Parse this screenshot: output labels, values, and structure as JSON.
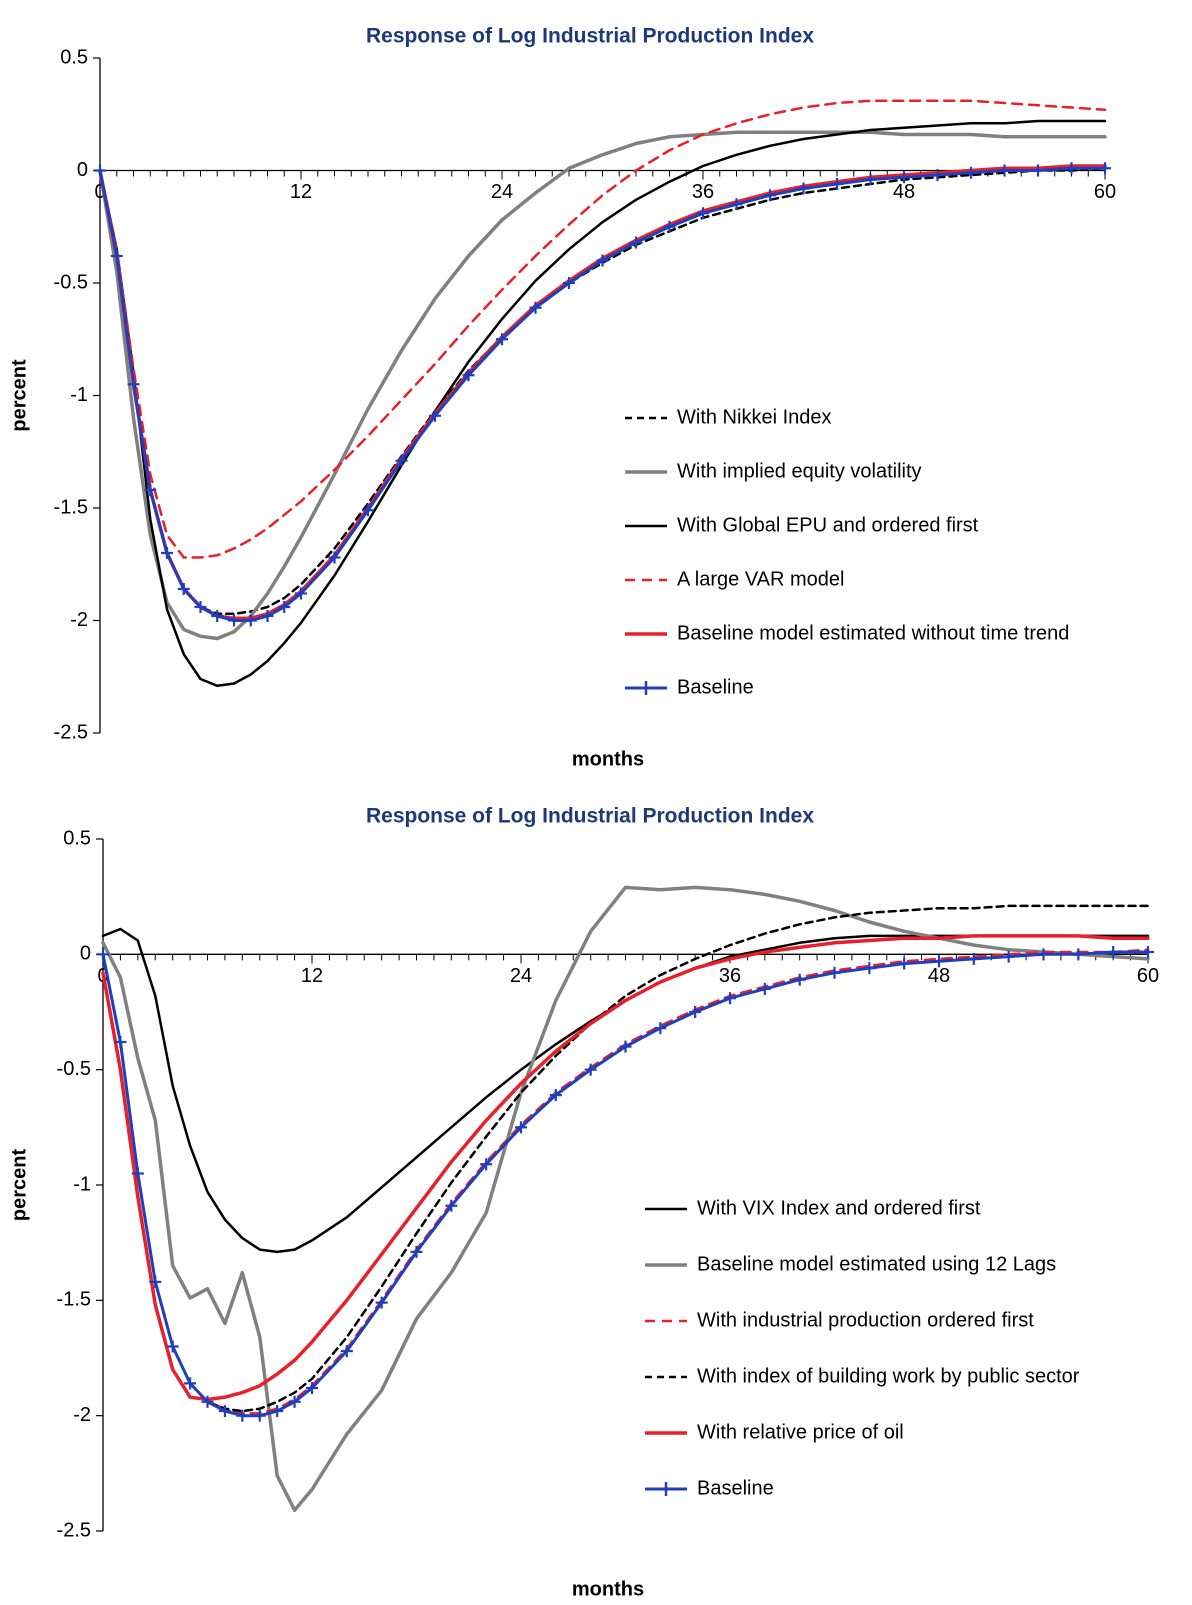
{
  "chart_data": [
    {
      "type": "line",
      "title": "Response of Log Industrial Production Index",
      "xlabel": "months",
      "ylabel": "percent",
      "xlim": [
        0,
        60
      ],
      "ylim": [
        -2.5,
        0.5
      ],
      "x_ticks": [
        "0",
        "12",
        "24",
        "36",
        "48",
        "60"
      ],
      "y_ticks": [
        "0.5",
        "0",
        "-0.5",
        "-1",
        "-1.5",
        "-2",
        "-2.5"
      ],
      "legend_position": "lower-right",
      "x_key": [
        0,
        1,
        2,
        3,
        4,
        5,
        6,
        7,
        8,
        9,
        10,
        11,
        12,
        14,
        16,
        18,
        20,
        22,
        24,
        26,
        28,
        30,
        32,
        34,
        36,
        38,
        40,
        42,
        44,
        46,
        48,
        50,
        52,
        54,
        56,
        58,
        60
      ],
      "series": [
        {
          "name": "With Nikkei Index",
          "style": "dashed",
          "color": "#000000",
          "values": [
            0,
            -0.38,
            -0.95,
            -1.42,
            -1.7,
            -1.86,
            -1.94,
            -1.97,
            -1.97,
            -1.96,
            -1.94,
            -1.9,
            -1.84,
            -1.68,
            -1.48,
            -1.27,
            -1.07,
            -0.89,
            -0.74,
            -0.61,
            -0.5,
            -0.41,
            -0.33,
            -0.27,
            -0.21,
            -0.17,
            -0.13,
            -0.1,
            -0.08,
            -0.06,
            -0.04,
            -0.03,
            -0.02,
            -0.01,
            0,
            0,
            0.01
          ]
        },
        {
          "name": "With implied equity volatility",
          "style": "solid",
          "color": "#808080",
          "values": [
            0,
            -0.45,
            -1.1,
            -1.62,
            -1.92,
            -2.04,
            -2.07,
            -2.08,
            -2.05,
            -1.98,
            -1.88,
            -1.76,
            -1.63,
            -1.35,
            -1.06,
            -0.8,
            -0.57,
            -0.38,
            -0.22,
            -0.1,
            0.01,
            0.07,
            0.12,
            0.15,
            0.16,
            0.17,
            0.17,
            0.17,
            0.17,
            0.17,
            0.16,
            0.16,
            0.16,
            0.15,
            0.15,
            0.15,
            0.15
          ]
        },
        {
          "name": "With Global EPU and ordered first",
          "style": "solid",
          "color": "#000000",
          "values": [
            0,
            -0.35,
            -0.9,
            -1.55,
            -1.95,
            -2.15,
            -2.26,
            -2.29,
            -2.28,
            -2.24,
            -2.18,
            -2.1,
            -2.01,
            -1.8,
            -1.56,
            -1.31,
            -1.07,
            -0.85,
            -0.66,
            -0.49,
            -0.35,
            -0.23,
            -0.13,
            -0.05,
            0.02,
            0.07,
            0.11,
            0.14,
            0.16,
            0.18,
            0.19,
            0.2,
            0.21,
            0.21,
            0.22,
            0.22,
            0.22
          ]
        },
        {
          "name": "A large VAR model",
          "style": "dashed",
          "color": "#e8202a",
          "values": [
            0,
            -0.35,
            -0.88,
            -1.35,
            -1.62,
            -1.72,
            -1.72,
            -1.71,
            -1.68,
            -1.64,
            -1.59,
            -1.53,
            -1.47,
            -1.33,
            -1.18,
            -1.02,
            -0.86,
            -0.69,
            -0.53,
            -0.38,
            -0.24,
            -0.11,
            0,
            0.09,
            0.16,
            0.21,
            0.25,
            0.28,
            0.3,
            0.31,
            0.31,
            0.31,
            0.31,
            0.3,
            0.29,
            0.28,
            0.27
          ]
        },
        {
          "name": "Baseline model estimated without time trend",
          "style": "solid",
          "color": "#e8202a",
          "values": [
            0,
            -0.38,
            -0.95,
            -1.42,
            -1.7,
            -1.86,
            -1.94,
            -1.98,
            -1.99,
            -1.99,
            -1.97,
            -1.93,
            -1.87,
            -1.71,
            -1.5,
            -1.28,
            -1.08,
            -0.9,
            -0.74,
            -0.6,
            -0.49,
            -0.39,
            -0.31,
            -0.24,
            -0.18,
            -0.14,
            -0.1,
            -0.07,
            -0.05,
            -0.03,
            -0.02,
            -0.01,
            0,
            0.01,
            0.01,
            0.02,
            0.02
          ]
        },
        {
          "name": "Baseline",
          "style": "solid-marker",
          "color": "#1f3fbf",
          "values": [
            0,
            -0.38,
            -0.95,
            -1.42,
            -1.7,
            -1.86,
            -1.94,
            -1.98,
            -2,
            -2,
            -1.98,
            -1.94,
            -1.88,
            -1.72,
            -1.51,
            -1.29,
            -1.09,
            -0.91,
            -0.75,
            -0.61,
            -0.5,
            -0.4,
            -0.32,
            -0.25,
            -0.19,
            -0.15,
            -0.11,
            -0.08,
            -0.06,
            -0.04,
            -0.03,
            -0.02,
            -0.01,
            0,
            0,
            0.01,
            0.01
          ]
        }
      ]
    },
    {
      "type": "line",
      "title": "Response of Log Industrial Production Index",
      "xlabel": "months",
      "ylabel": "percent",
      "xlim": [
        0,
        60
      ],
      "ylim": [
        -2.5,
        0.5
      ],
      "x_ticks": [
        "0",
        "12",
        "24",
        "36",
        "48",
        "60"
      ],
      "y_ticks": [
        "0.5",
        "0",
        "-0.5",
        "-1",
        "-1.5",
        "-2",
        "-2.5"
      ],
      "legend_position": "lower-right",
      "x_key": [
        0,
        1,
        2,
        3,
        4,
        5,
        6,
        7,
        8,
        9,
        10,
        11,
        12,
        14,
        16,
        18,
        20,
        22,
        24,
        26,
        28,
        30,
        32,
        34,
        36,
        38,
        40,
        42,
        44,
        46,
        48,
        50,
        52,
        54,
        56,
        58,
        60
      ],
      "series": [
        {
          "name": "With VIX Index and ordered first",
          "style": "solid",
          "color": "#000000",
          "values": [
            0.08,
            0.11,
            0.06,
            -0.18,
            -0.57,
            -0.83,
            -1.03,
            -1.15,
            -1.23,
            -1.28,
            -1.29,
            -1.28,
            -1.24,
            -1.14,
            -1.01,
            -0.88,
            -0.75,
            -0.62,
            -0.5,
            -0.39,
            -0.29,
            -0.2,
            -0.12,
            -0.06,
            -0.01,
            0.02,
            0.05,
            0.07,
            0.08,
            0.08,
            0.08,
            0.08,
            0.08,
            0.08,
            0.08,
            0.08,
            0.08
          ]
        },
        {
          "name": "Baseline model estimated using 12 Lags",
          "style": "solid",
          "color": "#808080",
          "values": [
            0.05,
            -0.1,
            -0.45,
            -0.72,
            -1.35,
            -1.49,
            -1.45,
            -1.6,
            -1.38,
            -1.66,
            -2.26,
            -2.41,
            -2.32,
            -2.08,
            -1.89,
            -1.58,
            -1.38,
            -1.12,
            -0.6,
            -0.2,
            0.1,
            0.29,
            0.28,
            0.29,
            0.28,
            0.26,
            0.23,
            0.19,
            0.14,
            0.1,
            0.07,
            0.04,
            0.02,
            0.01,
            0,
            -0.01,
            -0.02
          ]
        },
        {
          "name": "With industrial production ordered first",
          "style": "dashed",
          "color": "#e8202a",
          "values": [
            0,
            -0.38,
            -0.95,
            -1.42,
            -1.7,
            -1.86,
            -1.94,
            -1.97,
            -1.99,
            -1.99,
            -1.97,
            -1.93,
            -1.87,
            -1.71,
            -1.5,
            -1.28,
            -1.08,
            -0.9,
            -0.74,
            -0.6,
            -0.49,
            -0.39,
            -0.31,
            -0.24,
            -0.18,
            -0.14,
            -0.1,
            -0.07,
            -0.05,
            -0.03,
            -0.02,
            -0.01,
            0,
            0.01,
            0.01,
            0.01,
            0.02
          ]
        },
        {
          "name": "With index of building work by public sector",
          "style": "dashed",
          "color": "#000000",
          "values": [
            0,
            -0.38,
            -0.95,
            -1.42,
            -1.7,
            -1.86,
            -1.94,
            -1.97,
            -1.98,
            -1.97,
            -1.94,
            -1.9,
            -1.84,
            -1.66,
            -1.44,
            -1.21,
            -0.99,
            -0.79,
            -0.6,
            -0.44,
            -0.3,
            -0.18,
            -0.09,
            -0.02,
            0.04,
            0.09,
            0.13,
            0.16,
            0.18,
            0.19,
            0.2,
            0.2,
            0.21,
            0.21,
            0.21,
            0.21,
            0.21
          ]
        },
        {
          "name": "With relative price of oil",
          "style": "solid",
          "color": "#e8202a",
          "values": [
            -0.08,
            -0.5,
            -1.05,
            -1.52,
            -1.8,
            -1.92,
            -1.93,
            -1.92,
            -1.9,
            -1.87,
            -1.82,
            -1.76,
            -1.68,
            -1.5,
            -1.3,
            -1.1,
            -0.9,
            -0.72,
            -0.56,
            -0.42,
            -0.3,
            -0.2,
            -0.12,
            -0.06,
            -0.02,
            0.01,
            0.03,
            0.05,
            0.06,
            0.07,
            0.07,
            0.08,
            0.08,
            0.08,
            0.08,
            0.07,
            0.07
          ]
        },
        {
          "name": "Baseline",
          "style": "solid-marker",
          "color": "#1f3fbf",
          "values": [
            0,
            -0.38,
            -0.95,
            -1.42,
            -1.7,
            -1.86,
            -1.94,
            -1.98,
            -2,
            -2,
            -1.98,
            -1.94,
            -1.88,
            -1.72,
            -1.51,
            -1.29,
            -1.09,
            -0.91,
            -0.75,
            -0.61,
            -0.5,
            -0.4,
            -0.32,
            -0.25,
            -0.19,
            -0.15,
            -0.11,
            -0.08,
            -0.06,
            -0.04,
            -0.03,
            -0.02,
            -0.01,
            0,
            0,
            0.01,
            0.01
          ]
        }
      ]
    }
  ]
}
